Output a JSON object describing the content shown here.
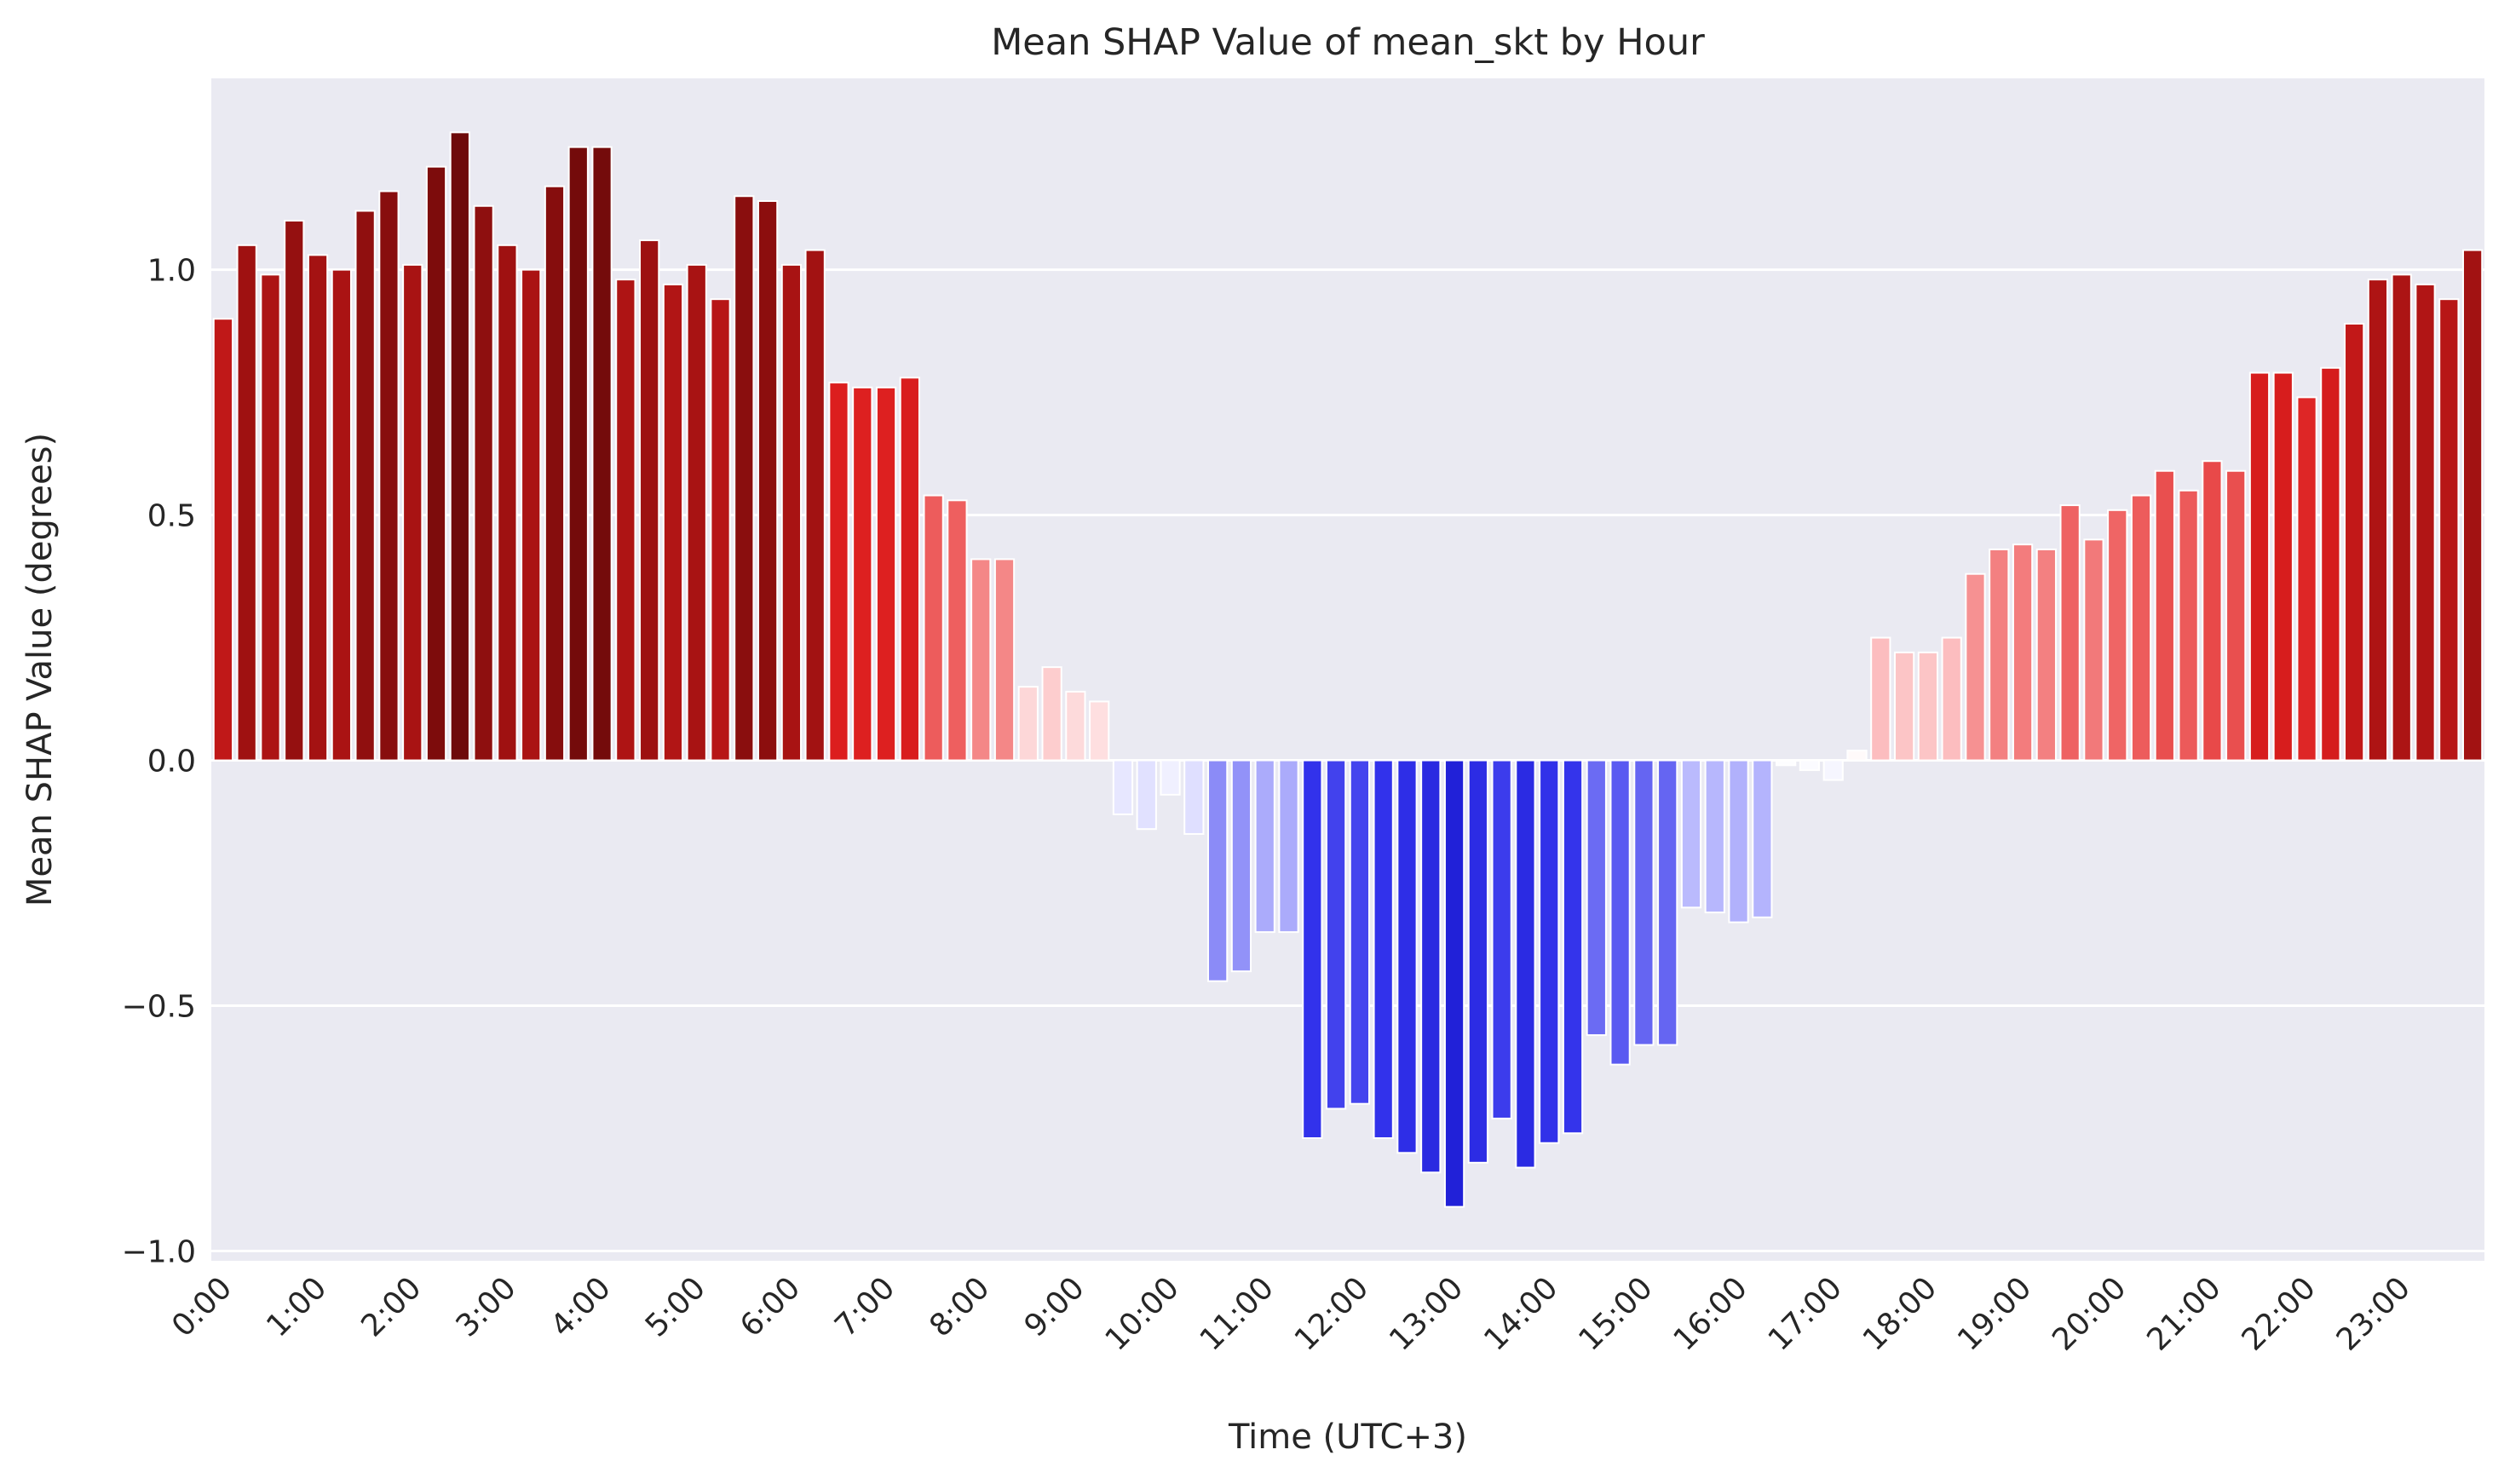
{
  "chart_data": {
    "type": "bar",
    "title": "Mean SHAP Value of mean_skt by Hour",
    "xlabel": "Time (UTC+3)",
    "ylabel": "Mean SHAP Value (degrees)",
    "ylim": [
      -1.02,
      1.39
    ],
    "yticks": [
      1.0,
      0.5,
      0.0,
      -0.5,
      -1.0
    ],
    "ytick_labels": [
      "1.0",
      "0.5",
      "0.0",
      "−0.5",
      "−1.0"
    ],
    "xtick_labels": [
      "0:00",
      "1:00",
      "2:00",
      "3:00",
      "4:00",
      "5:00",
      "6:00",
      "7:00",
      "8:00",
      "9:00",
      "10:00",
      "11:00",
      "12:00",
      "13:00",
      "14:00",
      "15:00",
      "16:00",
      "17:00",
      "18:00",
      "19:00",
      "20:00",
      "21:00",
      "22:00",
      "23:00"
    ],
    "bars_per_label": 4,
    "grid": true,
    "colors": {
      "background": "#eaeaf2",
      "grid": "#ffffff",
      "positive_scale": "white-to-darkred",
      "negative_scale": "white-to-darkblue"
    },
    "values": [
      0.9,
      1.05,
      0.99,
      1.1,
      1.03,
      1.0,
      1.12,
      1.16,
      1.01,
      1.21,
      1.28,
      1.13,
      1.05,
      1.0,
      1.17,
      1.25,
      1.25,
      0.98,
      1.06,
      0.97,
      1.01,
      0.94,
      1.15,
      1.14,
      1.01,
      1.04,
      0.77,
      0.76,
      0.76,
      0.78,
      0.54,
      0.53,
      0.41,
      0.41,
      0.15,
      0.19,
      0.14,
      0.12,
      -0.11,
      -0.14,
      -0.07,
      -0.15,
      -0.45,
      -0.43,
      -0.35,
      -0.35,
      -0.77,
      -0.71,
      -0.7,
      -0.77,
      -0.8,
      -0.84,
      -0.91,
      -0.82,
      -0.73,
      -0.83,
      -0.78,
      -0.76,
      -0.56,
      -0.62,
      -0.58,
      -0.58,
      -0.3,
      -0.31,
      -0.33,
      -0.32,
      -0.01,
      -0.02,
      -0.04,
      0.02,
      0.25,
      0.22,
      0.22,
      0.25,
      0.38,
      0.43,
      0.44,
      0.43,
      0.52,
      0.45,
      0.51,
      0.54,
      0.59,
      0.55,
      0.61,
      0.59,
      0.79,
      0.79,
      0.74,
      0.8,
      0.89,
      0.98,
      0.99,
      0.97,
      0.94,
      1.04
    ]
  }
}
